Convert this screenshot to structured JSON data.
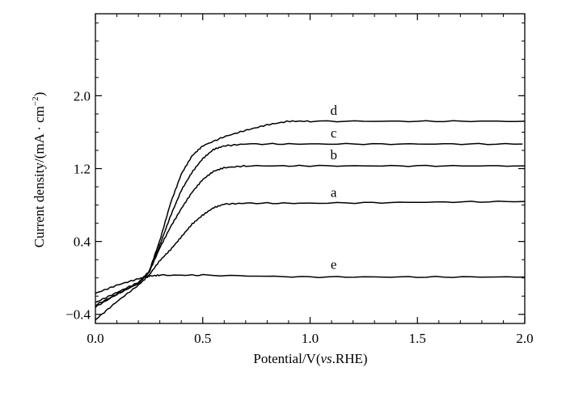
{
  "chart_data": {
    "type": "line",
    "xlabel": "Potential/V(",
    "xlabel_italic": "vs",
    "xlabel_tail": ".RHE)",
    "ylabel": "Current density/(mA · cm",
    "ylabel_sup": "−2",
    "ylabel_tail": ")",
    "xlim": [
      0.0,
      2.0
    ],
    "ylim": [
      -0.5,
      2.9
    ],
    "x_ticks": [
      "0.0",
      "0.5",
      "1.0",
      "1.5",
      "2.0"
    ],
    "x_tick_values": [
      0.0,
      0.5,
      1.0,
      1.5,
      2.0
    ],
    "y_ticks": [
      "−0.4",
      "0.4",
      "1.2",
      "2.0"
    ],
    "y_tick_values": [
      -0.4,
      0.4,
      1.2,
      2.0
    ],
    "grid": false,
    "series": [
      {
        "name": "a",
        "label_at": [
          1.11,
          0.82
        ],
        "x": [
          0.0,
          0.1,
          0.2,
          0.25,
          0.3,
          0.35,
          0.4,
          0.45,
          0.5,
          0.55,
          0.6,
          0.7,
          1.0,
          1.5,
          2.0
        ],
        "y": [
          -0.46,
          -0.26,
          -0.08,
          0.03,
          0.19,
          0.31,
          0.45,
          0.59,
          0.69,
          0.77,
          0.81,
          0.82,
          0.82,
          0.83,
          0.84
        ]
      },
      {
        "name": "b",
        "label_at": [
          1.11,
          1.23
        ],
        "x": [
          0.0,
          0.1,
          0.2,
          0.25,
          0.3,
          0.35,
          0.4,
          0.45,
          0.5,
          0.55,
          0.6,
          0.7,
          1.0,
          1.5,
          2.0
        ],
        "y": [
          -0.32,
          -0.18,
          -0.06,
          0.06,
          0.33,
          0.56,
          0.76,
          0.94,
          1.08,
          1.17,
          1.21,
          1.23,
          1.23,
          1.23,
          1.23
        ]
      },
      {
        "name": "c",
        "label_at": [
          1.11,
          1.47
        ],
        "x": [
          0.0,
          0.1,
          0.2,
          0.25,
          0.3,
          0.35,
          0.4,
          0.45,
          0.5,
          0.55,
          0.6,
          0.7,
          1.0,
          1.5,
          1.99
        ],
        "y": [
          -0.27,
          -0.16,
          -0.05,
          0.07,
          0.36,
          0.68,
          0.96,
          1.16,
          1.31,
          1.41,
          1.45,
          1.47,
          1.47,
          1.47,
          1.47
        ]
      },
      {
        "name": "d",
        "label_at": [
          1.11,
          1.72
        ],
        "x": [
          0.0,
          0.1,
          0.2,
          0.25,
          0.3,
          0.35,
          0.4,
          0.45,
          0.5,
          0.6,
          0.7,
          0.8,
          0.9,
          1.0,
          1.5,
          2.0
        ],
        "y": [
          -0.3,
          -0.18,
          -0.06,
          0.07,
          0.41,
          0.82,
          1.14,
          1.34,
          1.45,
          1.55,
          1.62,
          1.68,
          1.72,
          1.72,
          1.72,
          1.72
        ]
      },
      {
        "name": "e",
        "label_at": [
          1.11,
          0.03
        ],
        "x": [
          0.0,
          0.1,
          0.2,
          0.25,
          0.3,
          0.5,
          1.0,
          1.5,
          2.0
        ],
        "y": [
          -0.17,
          -0.08,
          -0.01,
          0.02,
          0.03,
          0.03,
          0.01,
          0.01,
          0.01
        ]
      }
    ]
  }
}
